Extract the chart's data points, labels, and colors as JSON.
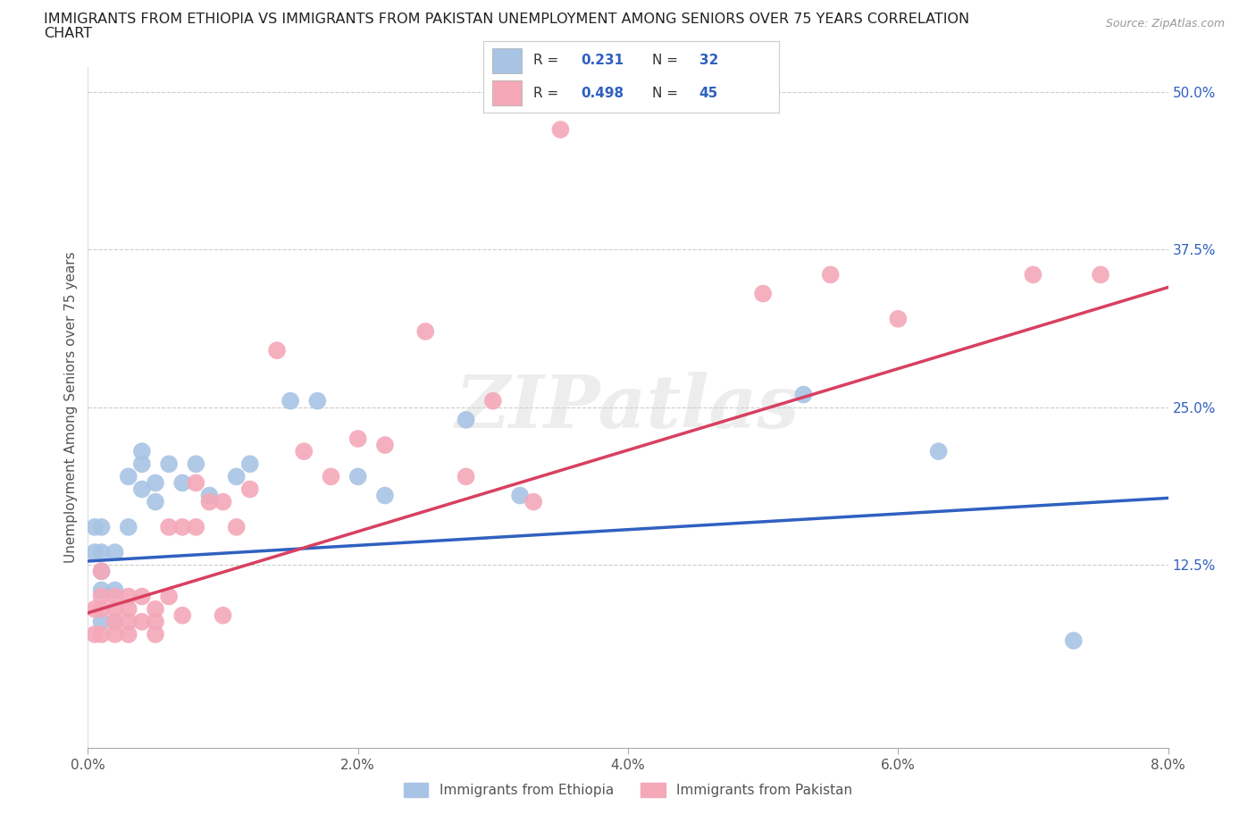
{
  "title_line1": "IMMIGRANTS FROM ETHIOPIA VS IMMIGRANTS FROM PAKISTAN UNEMPLOYMENT AMONG SENIORS OVER 75 YEARS CORRELATION",
  "title_line2": "CHART",
  "source": "Source: ZipAtlas.com",
  "ylabel": "Unemployment Among Seniors over 75 years",
  "xlim": [
    0.0,
    0.08
  ],
  "ylim": [
    -0.02,
    0.52
  ],
  "xticks": [
    0.0,
    0.02,
    0.04,
    0.06,
    0.08
  ],
  "xtick_labels": [
    "0.0%",
    "2.0%",
    "4.0%",
    "6.0%",
    "8.0%"
  ],
  "ytick_labels_right": [
    "12.5%",
    "25.0%",
    "37.5%",
    "50.0%"
  ],
  "yticks_right": [
    0.125,
    0.25,
    0.375,
    0.5
  ],
  "ethiopia_color": "#a8c4e5",
  "pakistan_color": "#f4a8b8",
  "ethiopia_line_color": "#3060c0",
  "pakistan_line_color": "#d84060",
  "background_color": "#ffffff",
  "grid_color": "#cccccc",
  "watermark": "ZIPatlas",
  "legend_R_ethiopia": "0.231",
  "legend_N_ethiopia": "32",
  "legend_R_pakistan": "0.498",
  "legend_N_pakistan": "45",
  "ethiopia_scatter_x": [
    0.0005,
    0.0005,
    0.001,
    0.001,
    0.001,
    0.001,
    0.001,
    0.002,
    0.002,
    0.002,
    0.003,
    0.003,
    0.004,
    0.004,
    0.004,
    0.005,
    0.005,
    0.006,
    0.007,
    0.008,
    0.009,
    0.011,
    0.012,
    0.015,
    0.017,
    0.02,
    0.022,
    0.028,
    0.032,
    0.053,
    0.063,
    0.073
  ],
  "ethiopia_scatter_y": [
    0.155,
    0.135,
    0.155,
    0.135,
    0.12,
    0.105,
    0.08,
    0.135,
    0.105,
    0.08,
    0.155,
    0.195,
    0.215,
    0.185,
    0.205,
    0.175,
    0.19,
    0.205,
    0.19,
    0.205,
    0.18,
    0.195,
    0.205,
    0.255,
    0.255,
    0.195,
    0.18,
    0.24,
    0.18,
    0.26,
    0.215,
    0.065
  ],
  "pakistan_scatter_x": [
    0.0005,
    0.0005,
    0.001,
    0.001,
    0.001,
    0.001,
    0.002,
    0.002,
    0.002,
    0.002,
    0.003,
    0.003,
    0.003,
    0.003,
    0.004,
    0.004,
    0.005,
    0.005,
    0.005,
    0.006,
    0.006,
    0.007,
    0.007,
    0.008,
    0.008,
    0.009,
    0.01,
    0.01,
    0.011,
    0.012,
    0.014,
    0.016,
    0.018,
    0.02,
    0.022,
    0.025,
    0.028,
    0.03,
    0.033,
    0.035,
    0.05,
    0.055,
    0.06,
    0.07,
    0.075
  ],
  "pakistan_scatter_y": [
    0.07,
    0.09,
    0.07,
    0.09,
    0.1,
    0.12,
    0.07,
    0.09,
    0.08,
    0.1,
    0.07,
    0.09,
    0.1,
    0.08,
    0.08,
    0.1,
    0.09,
    0.07,
    0.08,
    0.1,
    0.155,
    0.085,
    0.155,
    0.155,
    0.19,
    0.175,
    0.175,
    0.085,
    0.155,
    0.185,
    0.295,
    0.215,
    0.195,
    0.225,
    0.22,
    0.31,
    0.195,
    0.255,
    0.175,
    0.47,
    0.34,
    0.355,
    0.32,
    0.355,
    0.355
  ],
  "eth_line_x0": 0.0,
  "eth_line_y0": 0.128,
  "eth_line_x1": 0.08,
  "eth_line_y1": 0.178,
  "pak_line_x0": 0.0,
  "pak_line_y0": 0.087,
  "pak_line_x1": 0.08,
  "pak_line_y1": 0.345
}
